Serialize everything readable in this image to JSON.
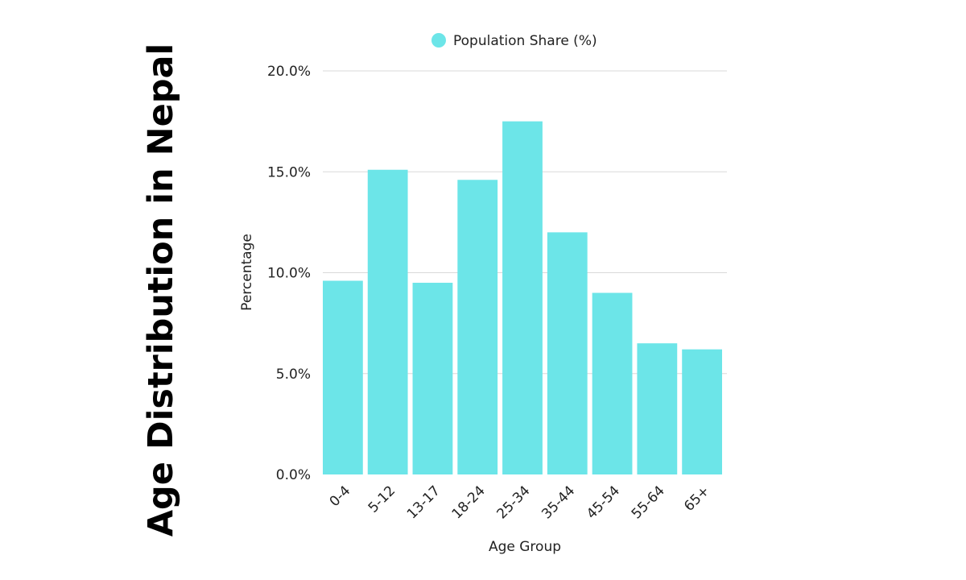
{
  "chart_data": {
    "type": "bar",
    "title": "Age Distribution in Nepal",
    "categories": [
      "0-4",
      "5-12",
      "13-17",
      "18-24",
      "25-34",
      "35-44",
      "45-54",
      "55-64",
      "65+"
    ],
    "series": [
      {
        "name": "Population Share (%)",
        "values": [
          9.6,
          15.1,
          9.5,
          14.6,
          17.5,
          12.0,
          9.0,
          6.5,
          6.2
        ]
      }
    ],
    "xlabel": "Age Group",
    "ylabel": "Percentage",
    "ylim": [
      0,
      20
    ],
    "yticks": [
      "0.0%",
      "5.0%",
      "10.0%",
      "15.0%",
      "20.0%"
    ],
    "ytick_values": [
      0,
      5,
      10,
      15,
      20
    ],
    "legend_position": "top-center",
    "grid": true,
    "colors": {
      "bar": "#6ce5e8",
      "grid": "#d9d9d9",
      "text": "#222222",
      "title": "#000000"
    }
  }
}
